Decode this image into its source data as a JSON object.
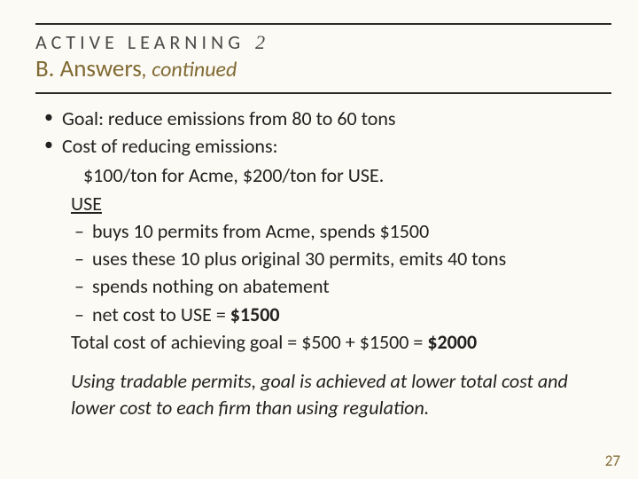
{
  "header": {
    "kicker": "ACTIVE LEARNING",
    "kicker_num": "2",
    "part": "B.",
    "title_main": "Answers",
    "title_tail": ", continued"
  },
  "bullets": [
    "Goal:  reduce emissions from 80 to 60 tons",
    "Cost of reducing emissions:"
  ],
  "cost_detail": "$100/ton for Acme, $200/ton for USE.",
  "use_label": "USE",
  "use_items": [
    "buys 10 permits from Acme, spends $1500",
    "uses these 10 plus original 30 permits, emits 40 tons",
    "spends nothing on abatement"
  ],
  "use_net_prefix": "net cost to USE = ",
  "use_net_value": "$1500",
  "total_prefix": "Total cost of achieving goal = $500 + $1500 = ",
  "total_value": "$2000",
  "footnote": "Using tradable permits, goal is achieved at lower total cost and lower cost to each firm than using regulation.",
  "page_number": "27",
  "colors": {
    "background": "#fcfaf4",
    "accent": "#806a34",
    "rule": "#2a2a2a",
    "text": "#222222"
  }
}
